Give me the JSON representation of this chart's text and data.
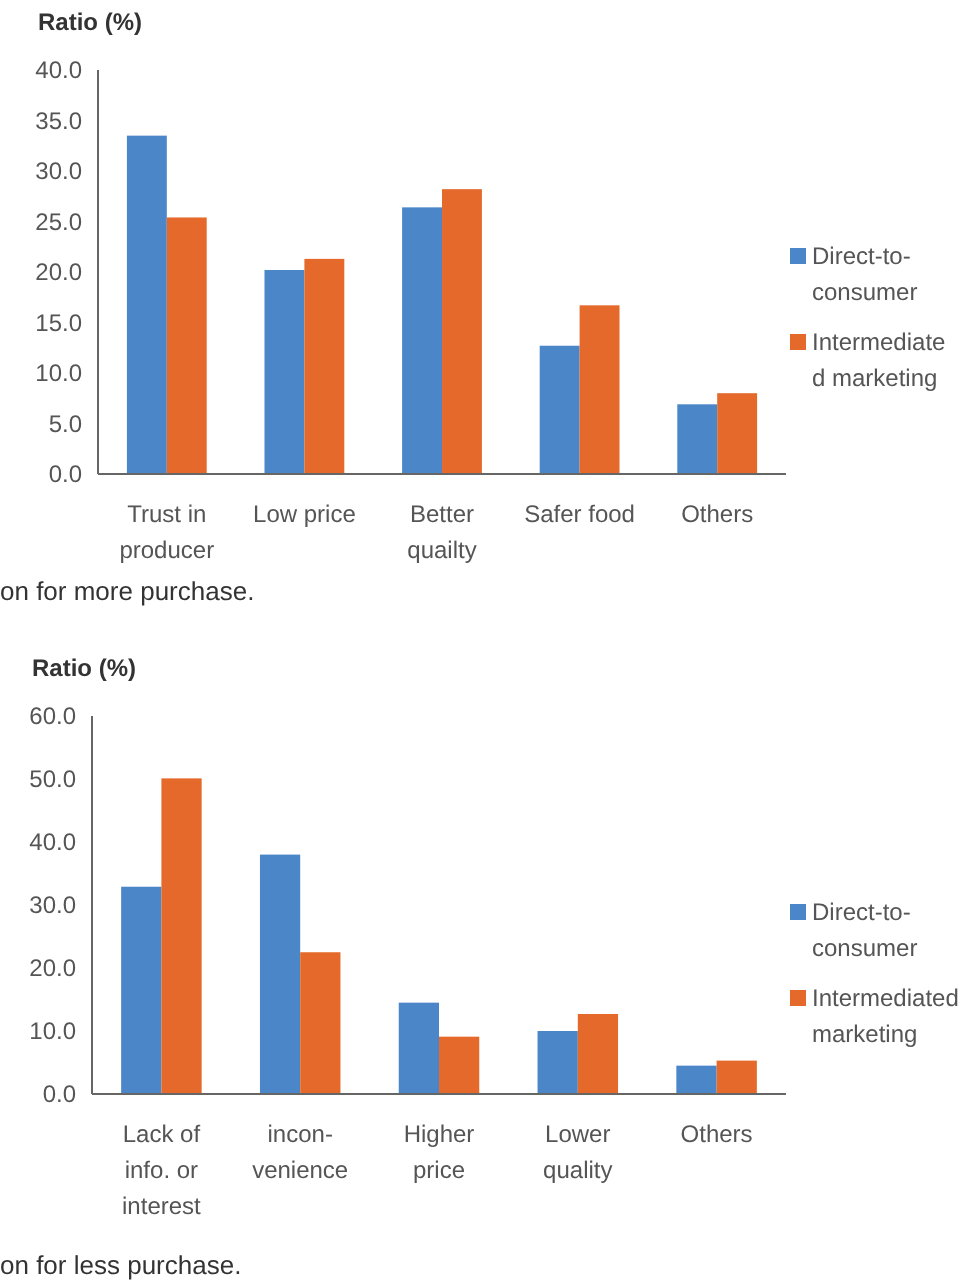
{
  "chart_data": [
    {
      "type": "bar",
      "ylabel": "Ratio (%)",
      "categories": [
        "Trust in\nproducer",
        "Low price",
        "Better\nquailty",
        "Safer food",
        "Others"
      ],
      "series": [
        {
          "name": "Direct-to-\nconsumer",
          "color": "#4a86c8",
          "values": [
            33.5,
            20.2,
            26.4,
            12.7,
            6.9
          ]
        },
        {
          "name": "Intermediate\nd marketing",
          "color": "#e4692a",
          "values": [
            25.4,
            21.3,
            28.2,
            16.7,
            8.0
          ]
        }
      ],
      "ylim": [
        0,
        40
      ],
      "yticks": [
        {
          "value": 0,
          "label": "0.0"
        },
        {
          "value": 5,
          "label": "5.0"
        },
        {
          "value": 10,
          "label": "10.0"
        },
        {
          "value": 15,
          "label": "15.0"
        },
        {
          "value": 20,
          "label": "20.0"
        },
        {
          "value": 25,
          "label": "25.0"
        },
        {
          "value": 30,
          "label": "30.0"
        },
        {
          "value": 35,
          "label": "35.0"
        },
        {
          "value": 40,
          "label": "40.0"
        }
      ],
      "grid": false,
      "legend": "right",
      "annotations": [
        "on for more purchase."
      ]
    },
    {
      "type": "bar",
      "ylabel": "Ratio (%)",
      "categories": [
        "Lack of\ninfo. or\ninterest",
        "incon-\nvenience",
        "Higher\nprice",
        "Lower\nquality",
        "Others"
      ],
      "series": [
        {
          "name": "Direct-to-\nconsumer",
          "color": "#4a86c8",
          "values": [
            32.9,
            38.0,
            14.5,
            10.0,
            4.5
          ]
        },
        {
          "name": "Intermediated\nmarketing",
          "color": "#e4692a",
          "values": [
            50.1,
            22.5,
            9.1,
            12.7,
            5.3
          ]
        }
      ],
      "ylim": [
        0,
        60
      ],
      "yticks": [
        {
          "value": 0,
          "label": "0.0"
        },
        {
          "value": 10,
          "label": "10.0"
        },
        {
          "value": 20,
          "label": "20.0"
        },
        {
          "value": 30,
          "label": "30.0"
        },
        {
          "value": 40,
          "label": "40.0"
        },
        {
          "value": 50,
          "label": "50.0"
        },
        {
          "value": 60,
          "label": "60.0"
        }
      ],
      "grid": false,
      "legend": "right",
      "annotations": [
        "on for less purchase."
      ]
    }
  ]
}
